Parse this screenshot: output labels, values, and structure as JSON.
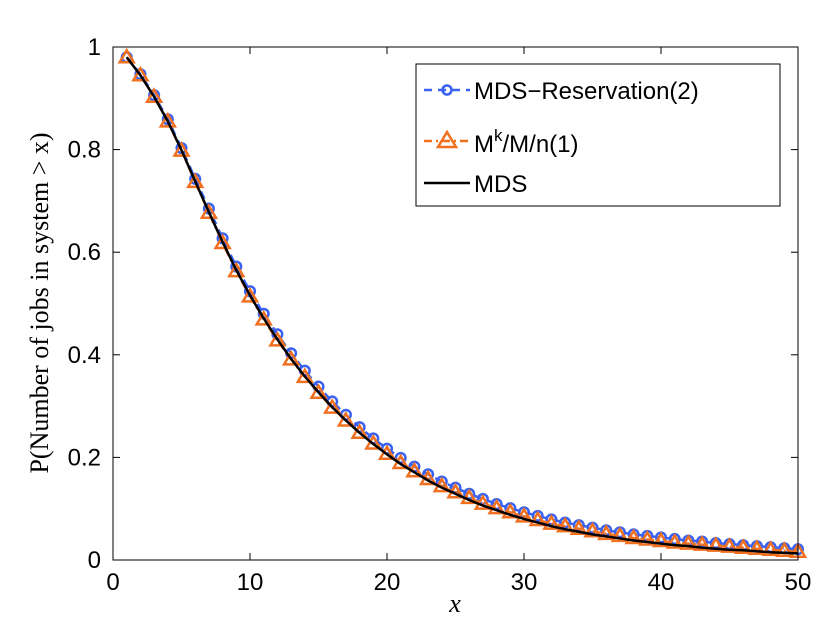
{
  "chart_data": {
    "type": "line",
    "title": "",
    "xlabel": "x",
    "ylabel": "P(Number of jobs in system > x)",
    "xlim": [
      0,
      50
    ],
    "ylim": [
      0,
      1
    ],
    "x_ticks": [
      "0",
      "10",
      "20",
      "30",
      "40",
      "50"
    ],
    "y_ticks": [
      "0",
      "0.2",
      "0.4",
      "0.6",
      "0.8",
      "1"
    ],
    "grid": false,
    "legend_position": "top-right",
    "x": [
      1,
      2,
      3,
      4,
      5,
      6,
      7,
      8,
      9,
      10,
      11,
      12,
      13,
      14,
      15,
      16,
      17,
      18,
      19,
      20,
      21,
      22,
      23,
      24,
      25,
      26,
      27,
      28,
      29,
      30,
      31,
      32,
      33,
      34,
      35,
      36,
      37,
      38,
      39,
      40,
      41,
      42,
      43,
      44,
      45,
      46,
      47,
      48,
      49,
      50
    ],
    "series": [
      {
        "name": "MDS−Reservation(2)",
        "style": "dashed",
        "marker": "circle",
        "color": "#3a62f0",
        "values": [
          0.98,
          0.947,
          0.906,
          0.859,
          0.803,
          0.743,
          0.685,
          0.627,
          0.572,
          0.524,
          0.48,
          0.44,
          0.403,
          0.369,
          0.338,
          0.309,
          0.283,
          0.259,
          0.237,
          0.217,
          0.199,
          0.182,
          0.167,
          0.153,
          0.141,
          0.129,
          0.119,
          0.109,
          0.101,
          0.093,
          0.086,
          0.079,
          0.073,
          0.068,
          0.063,
          0.058,
          0.054,
          0.05,
          0.047,
          0.044,
          0.041,
          0.038,
          0.036,
          0.033,
          0.031,
          0.029,
          0.027,
          0.025,
          0.023,
          0.021
        ]
      },
      {
        "name_main": "M",
        "name_sup": "k",
        "name_rest": "/M/n(1)",
        "style": "dash-dot",
        "marker": "triangle",
        "color": "#f07020",
        "values": [
          0.98,
          0.945,
          0.903,
          0.855,
          0.798,
          0.737,
          0.677,
          0.618,
          0.563,
          0.514,
          0.469,
          0.428,
          0.391,
          0.357,
          0.326,
          0.297,
          0.272,
          0.248,
          0.227,
          0.207,
          0.189,
          0.173,
          0.158,
          0.144,
          0.132,
          0.121,
          0.11,
          0.101,
          0.093,
          0.085,
          0.078,
          0.071,
          0.066,
          0.061,
          0.056,
          0.051,
          0.047,
          0.043,
          0.04,
          0.037,
          0.034,
          0.032,
          0.03,
          0.028,
          0.026,
          0.024,
          0.022,
          0.02,
          0.018,
          0.016
        ]
      },
      {
        "name": "MDS",
        "style": "solid",
        "marker": "none",
        "color": "#000000",
        "values": [
          0.98,
          0.945,
          0.903,
          0.855,
          0.799,
          0.738,
          0.678,
          0.62,
          0.565,
          0.516,
          0.471,
          0.43,
          0.392,
          0.358,
          0.327,
          0.298,
          0.272,
          0.248,
          0.226,
          0.206,
          0.187,
          0.171,
          0.155,
          0.141,
          0.129,
          0.117,
          0.106,
          0.097,
          0.088,
          0.08,
          0.073,
          0.066,
          0.06,
          0.055,
          0.05,
          0.046,
          0.042,
          0.038,
          0.035,
          0.032,
          0.029,
          0.027,
          0.024,
          0.022,
          0.02,
          0.019,
          0.017,
          0.015,
          0.014,
          0.013
        ]
      }
    ]
  }
}
